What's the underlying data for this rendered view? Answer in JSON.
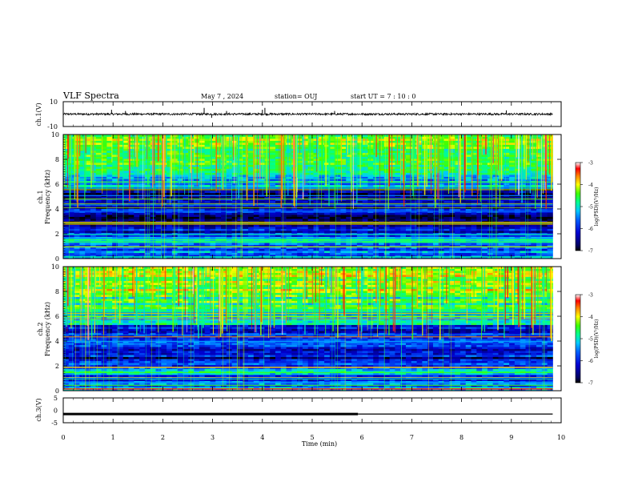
{
  "header": {
    "title": "VLF Spectra",
    "date": "May 7 , 2024",
    "station": "station= OUJ",
    "start": "start UT =  7 : 10 : 0"
  },
  "chart_data": [
    {
      "type": "line",
      "panel": "ch1-waveform",
      "ylabel": "ch.1(V)",
      "ylim": [
        -10,
        10
      ],
      "yticks": [
        10,
        -10
      ],
      "xlim": [
        0,
        10
      ],
      "baseline": 0,
      "noise_amplitude": 0.8,
      "spikes": [
        {
          "x": 0.97,
          "y": 3.5
        },
        {
          "x": 1.25,
          "y": 2.5
        },
        {
          "x": 2.83,
          "y": 5
        },
        {
          "x": 2.98,
          "y": -3
        },
        {
          "x": 3.28,
          "y": 2.5
        },
        {
          "x": 4.0,
          "y": 3.5
        },
        {
          "x": 4.05,
          "y": 5
        },
        {
          "x": 5.45,
          "y": 2.5
        },
        {
          "x": 8.9,
          "y": 3
        }
      ]
    },
    {
      "type": "heatmap",
      "panel": "ch1-spectrogram",
      "channel": "ch.1",
      "ylabel": "Frequency (kHz)",
      "ylim": [
        0,
        10
      ],
      "yticks": [
        0,
        2,
        4,
        6,
        8,
        10
      ],
      "xlim": [
        0,
        10
      ],
      "data_extent_min": 9.83,
      "colorbar": {
        "label": "log(PSD)(V²/Hz)",
        "range": [
          -7,
          -3
        ],
        "ticks": [
          -3,
          -4,
          -5,
          -6,
          -7
        ]
      },
      "bands": [
        {
          "freq_khz": [
            0,
            0.6
          ],
          "log_psd": -5.4
        },
        {
          "freq_khz": [
            0.6,
            1.3
          ],
          "log_psd": -5.9
        },
        {
          "freq_khz": [
            1.3,
            1.8
          ],
          "log_psd": -5.2
        },
        {
          "freq_khz": [
            1.8,
            2.6
          ],
          "log_psd": -6.2
        },
        {
          "freq_khz": [
            2.6,
            3.6
          ],
          "log_psd": -6.5
        },
        {
          "freq_khz": [
            3.6,
            4.4
          ],
          "log_psd": -6.2
        },
        {
          "freq_khz": [
            4.4,
            5.7
          ],
          "log_psd": -6.4
        },
        {
          "freq_khz": [
            5.7,
            6.6
          ],
          "log_psd": -5.3
        },
        {
          "freq_khz": [
            6.6,
            7.6
          ],
          "log_psd": -4.9
        },
        {
          "freq_khz": [
            7.6,
            10
          ],
          "log_psd": -4.4
        }
      ]
    },
    {
      "type": "heatmap",
      "panel": "ch2-spectrogram",
      "channel": "ch.2",
      "ylabel": "Frequency (kHz)",
      "ylim": [
        0,
        10
      ],
      "yticks": [
        0,
        2,
        4,
        6,
        8,
        10
      ],
      "xlim": [
        0,
        10
      ],
      "data_extent_min": 9.83,
      "colorbar": {
        "label": "log(PSD)(V²/Hz)",
        "range": [
          -7,
          -3
        ],
        "ticks": [
          -3,
          -4,
          -5,
          -6,
          -7
        ]
      },
      "bands": [
        {
          "freq_khz": [
            0,
            0.6
          ],
          "log_psd": -5.6
        },
        {
          "freq_khz": [
            0.6,
            1.3
          ],
          "log_psd": -5.7
        },
        {
          "freq_khz": [
            1.3,
            1.8
          ],
          "log_psd": -5.3
        },
        {
          "freq_khz": [
            1.8,
            2.6
          ],
          "log_psd": -6.0
        },
        {
          "freq_khz": [
            2.6,
            3.6
          ],
          "log_psd": -6.2
        },
        {
          "freq_khz": [
            3.6,
            4.4
          ],
          "log_psd": -6.0
        },
        {
          "freq_khz": [
            4.4,
            5.4
          ],
          "log_psd": -6.1
        },
        {
          "freq_khz": [
            5.4,
            6.6
          ],
          "log_psd": -5.1
        },
        {
          "freq_khz": [
            6.6,
            7.6
          ],
          "log_psd": -4.7
        },
        {
          "freq_khz": [
            7.6,
            10
          ],
          "log_psd": -4.3
        }
      ]
    },
    {
      "type": "line",
      "panel": "ch3-waveform",
      "ylabel": "ch.3(V)",
      "ylim": [
        -5,
        5
      ],
      "yticks": [
        5,
        0,
        -5
      ],
      "xlim": [
        0,
        10
      ],
      "xlabel": "Time (min)",
      "xticks": [
        0,
        1,
        2,
        3,
        4,
        5,
        6,
        7,
        8,
        9,
        10
      ],
      "segments": [
        {
          "x": [
            0,
            5.92
          ],
          "y": -1.5,
          "weight": "thick"
        },
        {
          "x": [
            5.92,
            9.83
          ],
          "y": -1.5,
          "weight": "thin"
        }
      ]
    }
  ]
}
